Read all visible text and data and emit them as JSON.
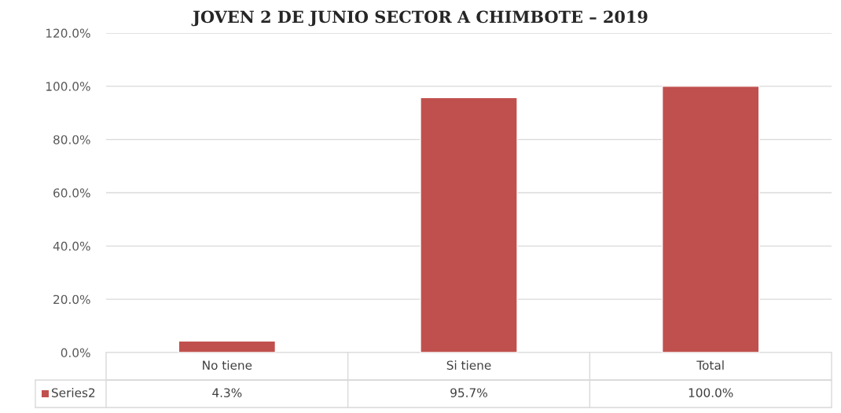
{
  "chart_data": {
    "type": "bar",
    "title": "JOVEN 2 DE JUNIO SECTOR A CHIMBOTE – 2019",
    "categories": [
      "No tiene",
      "Si tiene",
      "Total"
    ],
    "series": [
      {
        "name": "Series2",
        "color": "#c0504d",
        "values": [
          4.3,
          95.7,
          100.0
        ],
        "value_labels": [
          "4.3%",
          "95.7%",
          "100.0%"
        ]
      }
    ],
    "ylim": [
      0,
      120
    ],
    "yticks": [
      {
        "value": 0,
        "label": "0.0%"
      },
      {
        "value": 20,
        "label": "20.0%"
      },
      {
        "value": 40,
        "label": "40.0%"
      },
      {
        "value": 60,
        "label": "60.0%"
      },
      {
        "value": 80,
        "label": "80.0%"
      },
      {
        "value": 100,
        "label": "100.0%"
      },
      {
        "value": 120,
        "label": "120.0%"
      }
    ],
    "grid": "y",
    "legend": "bottom"
  }
}
